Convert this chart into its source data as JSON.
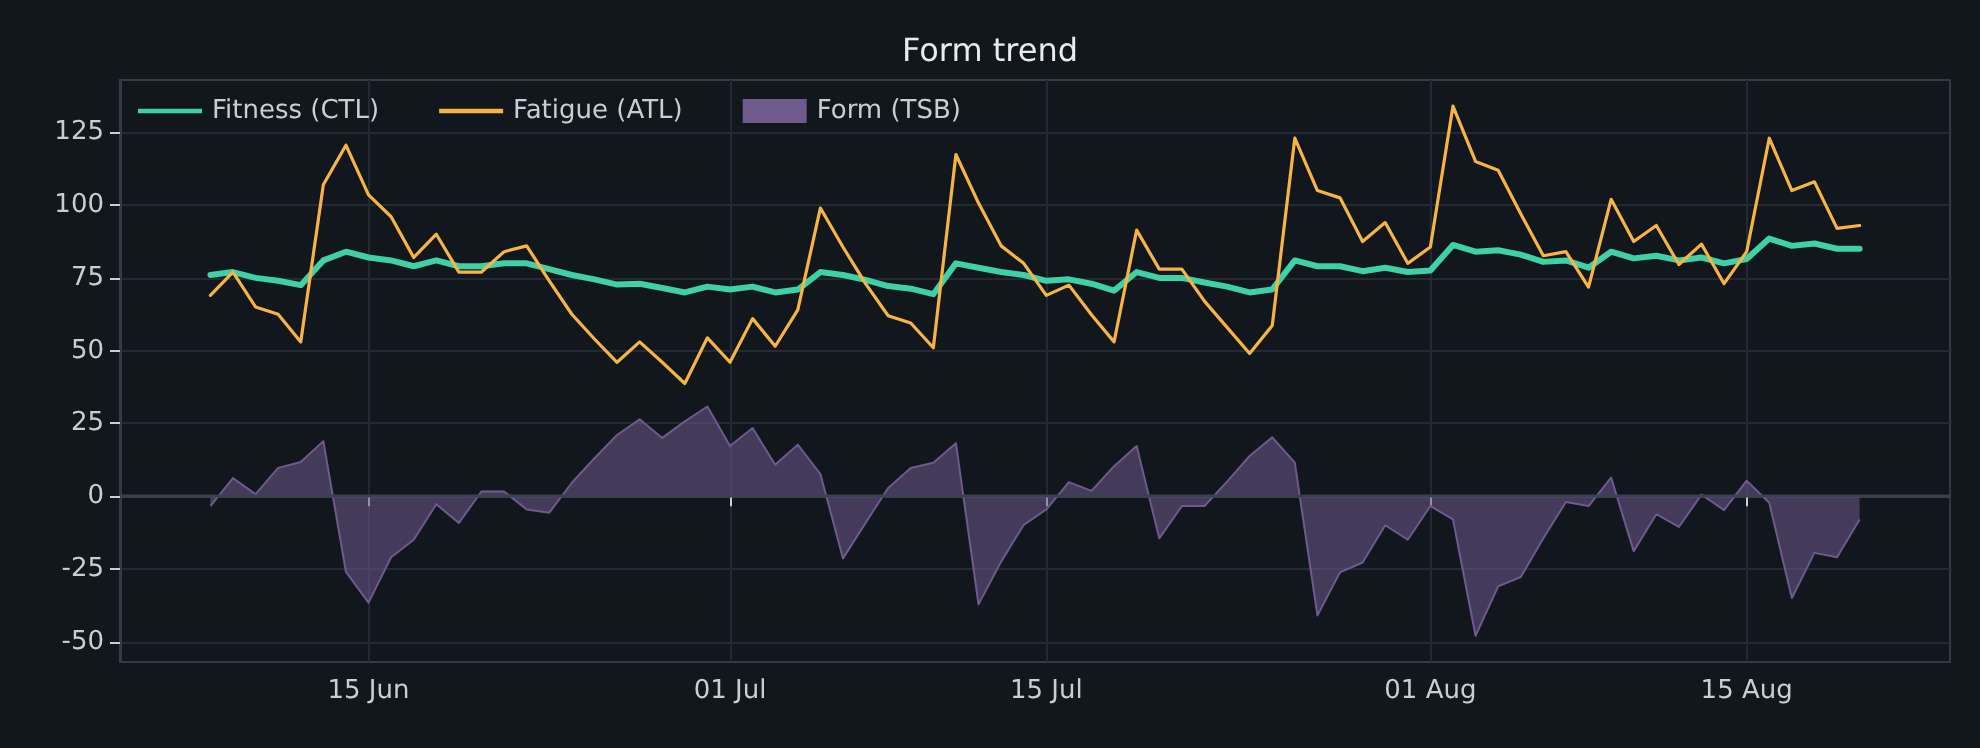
{
  "chart_data": {
    "type": "line",
    "title": "Form trend",
    "x": [
      "--06-08",
      "--06-09",
      "--06-10",
      "--06-11",
      "--06-12",
      "--06-13",
      "--06-14",
      "--06-15",
      "--06-16",
      "--06-17",
      "--06-18",
      "--06-19",
      "--06-20",
      "--06-21",
      "--06-22",
      "--06-23",
      "--06-24",
      "--06-25",
      "--06-26",
      "--06-27",
      "--06-28",
      "--06-29",
      "--06-30",
      "--07-01",
      "--07-02",
      "--07-03",
      "--07-04",
      "--07-05",
      "--07-06",
      "--07-07",
      "--07-08",
      "--07-09",
      "--07-10",
      "--07-11",
      "--07-12",
      "--07-13",
      "--07-14",
      "--07-15",
      "--07-16",
      "--07-17",
      "--07-18",
      "--07-19",
      "--07-20",
      "--07-21",
      "--07-22",
      "--07-23",
      "--07-24",
      "--07-25",
      "--07-26",
      "--07-27",
      "--07-28",
      "--07-29",
      "--07-30",
      "--07-31",
      "--08-01",
      "--08-02",
      "--08-03",
      "--08-04",
      "--08-05",
      "--08-06",
      "--08-07",
      "--08-08",
      "--08-09",
      "--08-10",
      "--08-11",
      "--08-12",
      "--08-13",
      "--08-14",
      "--08-15",
      "--08-16",
      "--08-17",
      "--08-18",
      "--08-19",
      "--08-20"
    ],
    "series": [
      {
        "name": "Fitness (CTL)",
        "color": "#3fd1a5",
        "values": [
          76,
          77,
          75,
          74,
          72.5,
          81,
          84,
          82,
          81,
          79,
          81,
          79,
          79,
          80,
          80,
          78,
          76,
          74.5,
          72.7,
          73,
          71.5,
          70,
          72,
          71,
          72,
          70,
          71,
          77,
          76,
          74.3,
          72.2,
          71.3,
          69.4,
          80,
          78.5,
          77,
          76,
          74,
          74.5,
          73,
          70.6,
          77,
          75,
          75,
          73.4,
          72,
          70,
          71,
          81,
          79,
          79,
          77.3,
          78.5,
          77,
          77.5,
          86.3,
          84,
          84.5,
          83,
          80.5,
          81,
          78.5,
          84,
          81.7,
          82.6,
          81,
          82,
          80,
          81.5,
          88.5,
          86,
          86.8,
          85,
          85
        ]
      },
      {
        "name": "Fatigue (ATL)",
        "color": "#f7b446",
        "values": [
          69,
          77,
          65,
          62.5,
          53,
          107,
          120.6,
          103.5,
          96,
          82,
          90,
          77,
          77,
          84,
          86,
          74,
          62.5,
          54,
          46,
          53,
          46,
          38.7,
          54.4,
          46,
          61,
          51.5,
          64,
          99,
          85.6,
          73,
          62,
          59.5,
          51,
          117.4,
          100.7,
          86,
          80,
          69,
          72.5,
          62.3,
          53,
          91.4,
          78,
          78,
          67,
          58,
          49,
          58.6,
          123,
          105,
          102.5,
          87.5,
          94,
          80,
          85.6,
          134,
          115,
          112,
          97,
          82.6,
          84,
          71.8,
          102,
          87.5,
          93,
          79.6,
          86.6,
          73,
          84,
          123,
          105,
          108,
          92,
          93
        ]
      },
      {
        "name": "Form (TSB)",
        "type": "area",
        "color": "#6e5a8c",
        "values": [
          -3.4,
          6.2,
          0.7,
          9.7,
          11.7,
          18.9,
          -26,
          -36.6,
          -21,
          -15,
          -2.8,
          -9.2,
          1.6,
          1.6,
          -4.6,
          -5.7,
          4.6,
          13,
          21,
          26.4,
          20,
          25.7,
          30.8,
          17.2,
          23.4,
          10.8,
          17.7,
          7.6,
          -21.4,
          -9.2,
          2.8,
          9.7,
          11.5,
          18.2,
          -37.2,
          -22.5,
          -9.9,
          -4.6,
          4.8,
          1.8,
          10.3,
          17.2,
          -14.5,
          -3.4,
          -3.4,
          5,
          13.8,
          20.2,
          11.5,
          -41,
          -26.2,
          -22.8,
          -10,
          -15,
          -3.4,
          -8,
          -48,
          -31,
          -27.8,
          -14.5,
          -2,
          -3.4,
          6.4,
          -18.9,
          -6.2,
          -10.6,
          0.5,
          -4.8,
          5.3,
          -2.3,
          -35,
          -19.5,
          -21,
          -8
        ]
      }
    ],
    "xlim": [
      "--06-04",
      "--08-24"
    ],
    "xticks": [
      {
        "value": "--06-15",
        "label": "15 Jun"
      },
      {
        "value": "--07-01",
        "label": "01 Jul"
      },
      {
        "value": "--07-15",
        "label": "15 Jul"
      },
      {
        "value": "--08-01",
        "label": "01 Aug"
      },
      {
        "value": "--08-15",
        "label": "15 Aug"
      }
    ],
    "ylim": [
      -57,
      143
    ],
    "yticks": [
      -50,
      -25,
      0,
      25,
      50,
      75,
      100,
      125
    ],
    "ref_lines": [
      {
        "axis": "y",
        "value": 0,
        "color": "#3a4252"
      }
    ],
    "grid": true,
    "legend": "top left",
    "marker": "none",
    "line_style": "solid"
  }
}
